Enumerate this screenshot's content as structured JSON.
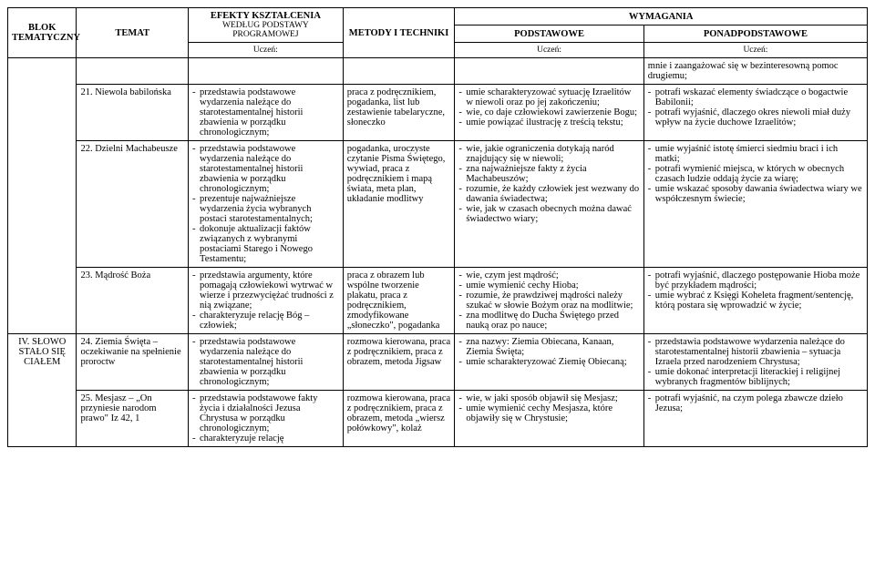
{
  "header": {
    "blok": "BLOK TEMATYCZNY",
    "temat": "TEMAT",
    "efekty_top": "EFEKTY KSZTAŁCENIA",
    "efekty_sub": "WEDŁUG PODSTAWY PROGRAMOWEJ",
    "uczen": "Uczeń:",
    "metody": "METODY I TECHNIKI",
    "wymagania": "WYMAGANIA",
    "podstawowe": "PODSTAWOWE",
    "ponad": "PONADPODSTAWOWE"
  },
  "topGap": {
    "ponad": "mnie i zaangażować się w bezinteresowną pomoc drugiemu;"
  },
  "blokLabel": "IV. SŁOWO STAŁO SIĘ CIAŁEM",
  "r21": {
    "temat": "21. Niewola babilońska",
    "efekty": [
      "przedstawia podstawowe wydarzenia należące do starotestamentalnej historii zbawienia w porządku chronologicznym;"
    ],
    "metody": "praca z podręcznikiem, pogadanka, list lub zestawienie tabelaryczne, słoneczko",
    "podstawowe": [
      "umie scharakteryzować sytuację Izraelitów w niewoli oraz po jej zakończeniu;",
      "wie, co daje człowiekowi zawierzenie Bogu;",
      "umie powiązać ilustrację z treścią tekstu;"
    ],
    "ponad": [
      "potrafi wskazać elementy świadczące o bogactwie Babilonii;",
      "potrafi wyjaśnić, dlaczego okres niewoli miał duży wpływ na życie duchowe Izraelitów;"
    ]
  },
  "r22": {
    "temat": "22. Dzielni Machabeusze",
    "efekty": [
      "przedstawia podstawowe wydarzenia należące do starotestamentalnej historii zbawienia w porządku chronologicznym;",
      "prezentuje najważniejsze wydarzenia życia wybranych postaci starotestamentalnych;",
      "dokonuje aktualizacji faktów związanych z wybranymi postaciami Starego i Nowego Testamentu;"
    ],
    "metody": "pogadanka, uroczyste czytanie Pisma Świętego, wywiad, praca z podręcznikiem i mapą świata, meta plan, układanie modlitwy",
    "podstawowe": [
      "wie, jakie ograniczenia dotykają naród znajdujący się w niewoli;",
      "zna najważniejsze fakty z życia Machabeuszów;",
      "rozumie, że każdy człowiek jest wezwany do dawania świadectwa;",
      "wie, jak w czasach obecnych można dawać świadectwo wiary;"
    ],
    "ponad": [
      "umie wyjaśnić istotę śmierci siedmiu braci i ich matki;",
      "potrafi wymienić miejsca, w których w obecnych czasach ludzie oddają życie za wiarę;",
      "umie wskazać sposoby dawania świadectwa wiary we współczesnym świecie;"
    ]
  },
  "r23": {
    "temat": "23. Mądrość Boża",
    "efekty": [
      "przedstawia argumenty, które pomagają człowiekowi wytrwać w wierze i przezwyciężać trudności z nią związane;",
      "charakteryzuje relację Bóg – człowiek;"
    ],
    "metody": "praca z obrazem lub wspólne tworzenie plakatu, praca z podręcznikiem, zmodyfikowane „słoneczko\", pogadanka",
    "podstawowe": [
      "wie, czym jest mądrość;",
      "umie wymienić cechy Hioba;",
      "rozumie, że prawdziwej mądrości należy szukać w słowie Bożym oraz na modlitwie;",
      "zna modlitwę do Ducha Świętego przed nauką oraz po nauce;"
    ],
    "ponad": [
      "potrafi wyjaśnić, dlaczego postępowanie Hioba może być przykładem mądrości;",
      "umie wybrać z Księgi Koheleta fragment/sentencję, którą postara się wprowadzić w życie;"
    ]
  },
  "r24": {
    "temat": "24. Ziemia Święta – oczekiwanie na spełnienie proroctw",
    "efekty": [
      "przedstawia podstawowe wydarzenia należące do starotestamentalnej historii zbawienia w porządku chronologicznym;"
    ],
    "metody": "rozmowa kierowana, praca z podręcznikiem, praca z obrazem, metoda Jigsaw",
    "podstawowe": [
      "zna nazwy: Ziemia Obiecana, Kanaan, Ziemia Święta;",
      "umie scharakteryzować Ziemię Obiecaną;"
    ],
    "ponad": [
      "przedstawia podstawowe wydarzenia należące do starotestamentalnej historii zbawienia – sytuacja Izraela przed narodzeniem Chrystusa;",
      "umie dokonać interpretacji literackiej i religijnej wybranych fragmentów biblijnych;"
    ]
  },
  "r25": {
    "temat": "25. Mesjasz – „On przyniesie narodom prawo\"  Iz 42, 1",
    "efekty": [
      "przedstawia podstawowe fakty życia i działalności Jezusa Chrystusa w porządku chronologicznym;",
      "charakteryzuje relację"
    ],
    "metody": "rozmowa kierowana, praca z podręcznikiem, praca z obrazem, metoda „wiersz połówkowy\", kolaż",
    "podstawowe": [
      "wie, w jaki sposób objawił się Mesjasz;",
      "umie wymienić cechy Mesjasza, które objawiły się w Chrystusie;"
    ],
    "ponad": [
      "potrafi wyjaśnić, na czym polega zbawcze dzieło Jezusa;"
    ]
  }
}
